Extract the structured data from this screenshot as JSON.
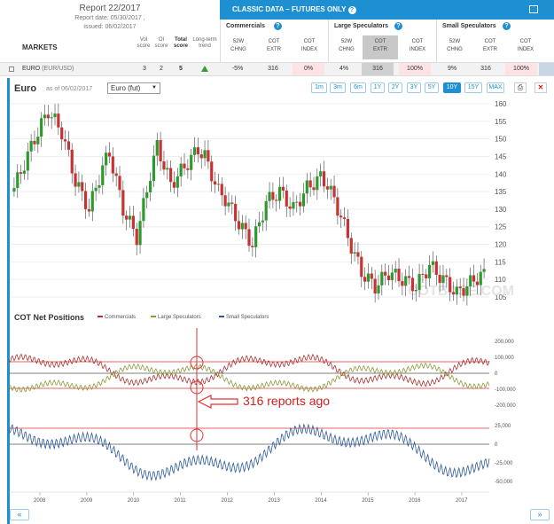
{
  "header": {
    "report_title": "Report 22/2017",
    "report_date": "Report date: 05/30/2017 ,",
    "issued": "issued: 06/02/2017",
    "markets_label": "MARKETS",
    "col_vol": "Vol\nscore",
    "col_oi": "OI\nscore",
    "col_total": "Total\nscore",
    "col_trend": "Long-term\ntrend"
  },
  "classic": {
    "title": "CLASSIC DATA – FUTURES ONLY",
    "groups": [
      {
        "title": "Commercials",
        "subs": [
          "52W\nCHNG",
          "COT\nEXTR",
          "COT\nINDEX"
        ]
      },
      {
        "title": "Large Speculators",
        "subs": [
          "52W\nCHNG",
          "COT\nEXTR",
          "COT\nINDEX"
        ]
      },
      {
        "title": "Small Speculators",
        "subs": [
          "52W\nCHNG",
          "COT\nEXTR",
          "COT\nINDEX"
        ]
      }
    ]
  },
  "row": {
    "name": "EURO",
    "pair": "(EUR/USD)",
    "vol": "3",
    "oi": "2",
    "total": "5",
    "cells": [
      "-5%",
      "316",
      "0%",
      "4%",
      "316",
      "100%",
      "9%",
      "316",
      "100%"
    ]
  },
  "chart": {
    "title": "Euro",
    "asof": "as of 06/02/2017",
    "select_value": "Euro (fut)",
    "timeframes": [
      "1m",
      "3m",
      "6m",
      "1Y",
      "2Y",
      "3Y",
      "5Y",
      "10Y",
      "15Y",
      "MAX"
    ],
    "active_timeframe": "10Y",
    "price_ticks": [
      "160",
      "155",
      "150",
      "145",
      "140",
      "135",
      "130",
      "125",
      "120",
      "115",
      "110",
      "105"
    ],
    "cot_title": "COT Net Positions",
    "legend": [
      "Commercials",
      "Large Speculators",
      "Small Speculators"
    ],
    "colors": {
      "commercials": "#a83232",
      "large": "#8a9a3a",
      "small": "#2d5a9a",
      "up": "#2e9a2e",
      "down": "#c83232",
      "accent": "#1e8fd0"
    },
    "cot_ticks": [
      "200,000",
      "100,000",
      "0",
      "-100,000",
      "-200,000"
    ],
    "small_ticks": [
      "25,000",
      "0",
      "-25,000",
      "-50,000"
    ],
    "years": [
      "2008",
      "2009",
      "2010",
      "2011",
      "2012",
      "2013",
      "2014",
      "2015",
      "2016",
      "2017"
    ],
    "annotation": "316 reports ago",
    "watermark": "COTBASE.COM"
  }
}
